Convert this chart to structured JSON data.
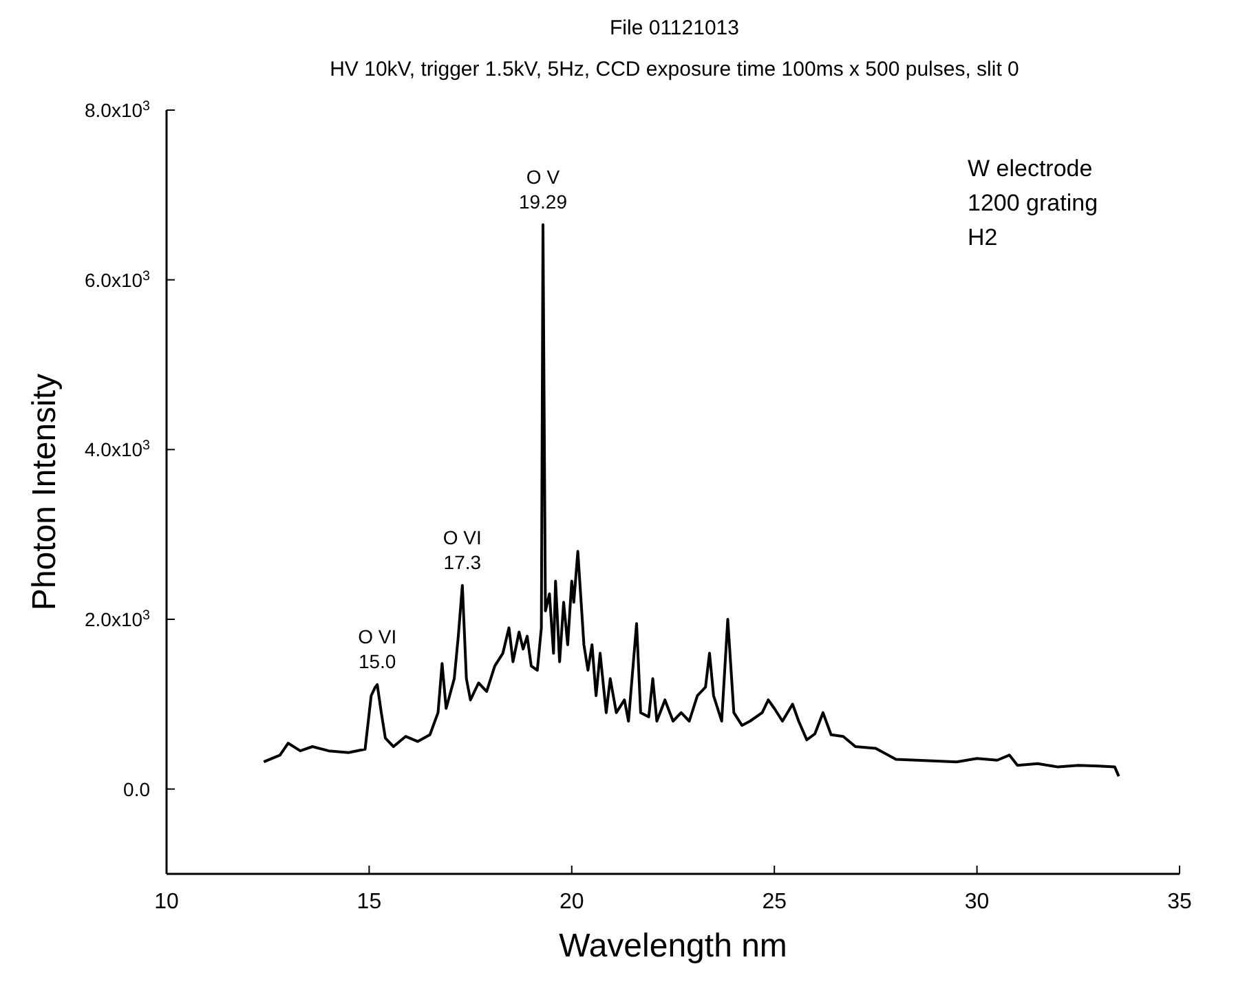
{
  "chart_data": {
    "type": "line",
    "title": "File 01121013",
    "subtitle": "HV 10kV, trigger 1.5kV, 5Hz, CCD exposure time 100ms x 500 pulses, slit 0",
    "xlabel": "Wavelength nm",
    "ylabel": "Photon Intensity",
    "xlim": [
      10,
      35
    ],
    "xticks": [
      10,
      15,
      20,
      25,
      30,
      35
    ],
    "ylim": [
      -1000,
      8000
    ],
    "yticks": [
      {
        "value": 0,
        "label": "0.0"
      },
      {
        "value": 2000,
        "label": "2.0x10$^{3}$"
      },
      {
        "value": 4000,
        "label": "4.0x10$^{3}$"
      },
      {
        "value": 6000,
        "label": "6.0x10$^{3}$"
      },
      {
        "value": 8000,
        "label": "8.0x10$^{3}$"
      }
    ],
    "grid": false,
    "marker": "none",
    "line_style": "solid",
    "series": [
      {
        "color": "#000000",
        "x": [
          12.4,
          12.8,
          13.0,
          13.3,
          13.6,
          14.0,
          14.5,
          14.9,
          15.05,
          15.15,
          15.2,
          15.3,
          15.4,
          15.6,
          15.9,
          16.2,
          16.5,
          16.7,
          16.8,
          16.9,
          17.1,
          17.2,
          17.3,
          17.4,
          17.5,
          17.7,
          17.9,
          18.1,
          18.3,
          18.45,
          18.55,
          18.7,
          18.8,
          18.9,
          19.0,
          19.15,
          19.25,
          19.29,
          19.35,
          19.45,
          19.55,
          19.6,
          19.7,
          19.8,
          19.9,
          20.0,
          20.05,
          20.15,
          20.3,
          20.4,
          20.5,
          20.6,
          20.7,
          20.85,
          20.95,
          21.1,
          21.3,
          21.4,
          21.6,
          21.7,
          21.9,
          22.0,
          22.1,
          22.3,
          22.5,
          22.7,
          22.9,
          23.1,
          23.3,
          23.4,
          23.5,
          23.7,
          23.85,
          24.0,
          24.2,
          24.4,
          24.7,
          24.85,
          25.0,
          25.2,
          25.45,
          25.6,
          25.8,
          26.0,
          26.2,
          26.4,
          26.7,
          27.0,
          27.5,
          28.0,
          28.5,
          29.0,
          29.5,
          30.0,
          30.5,
          30.8,
          31.0,
          31.5,
          32.0,
          32.5,
          33.0,
          33.4,
          33.5
        ],
        "values": [
          320,
          400,
          540,
          450,
          500,
          450,
          430,
          470,
          1100,
          1200,
          1230,
          900,
          600,
          500,
          620,
          560,
          640,
          900,
          1480,
          950,
          1300,
          1800,
          2400,
          1300,
          1050,
          1250,
          1150,
          1450,
          1600,
          1900,
          1500,
          1850,
          1650,
          1800,
          1450,
          1400,
          1900,
          6650,
          2100,
          2300,
          1600,
          2450,
          1500,
          2200,
          1700,
          2450,
          2200,
          2800,
          1700,
          1400,
          1700,
          1100,
          1600,
          900,
          1300,
          900,
          1050,
          800,
          1950,
          900,
          850,
          1300,
          800,
          1050,
          800,
          900,
          800,
          1100,
          1200,
          1600,
          1100,
          800,
          2000,
          900,
          750,
          800,
          900,
          1050,
          950,
          800,
          1000,
          800,
          580,
          650,
          900,
          640,
          620,
          500,
          480,
          350,
          340,
          330,
          320,
          360,
          340,
          400,
          280,
          300,
          260,
          280,
          270,
          260,
          150
        ]
      }
    ],
    "annotations": [
      {
        "text": "O VI\n15.0",
        "x": 15.2,
        "y": 1230
      },
      {
        "text": "O VI\n17.3",
        "x": 17.3,
        "y": 2400
      },
      {
        "text": "O V\n19.29",
        "x": 19.29,
        "y": 6650
      },
      "W electrode\n1200 grating\nH2"
    ]
  }
}
